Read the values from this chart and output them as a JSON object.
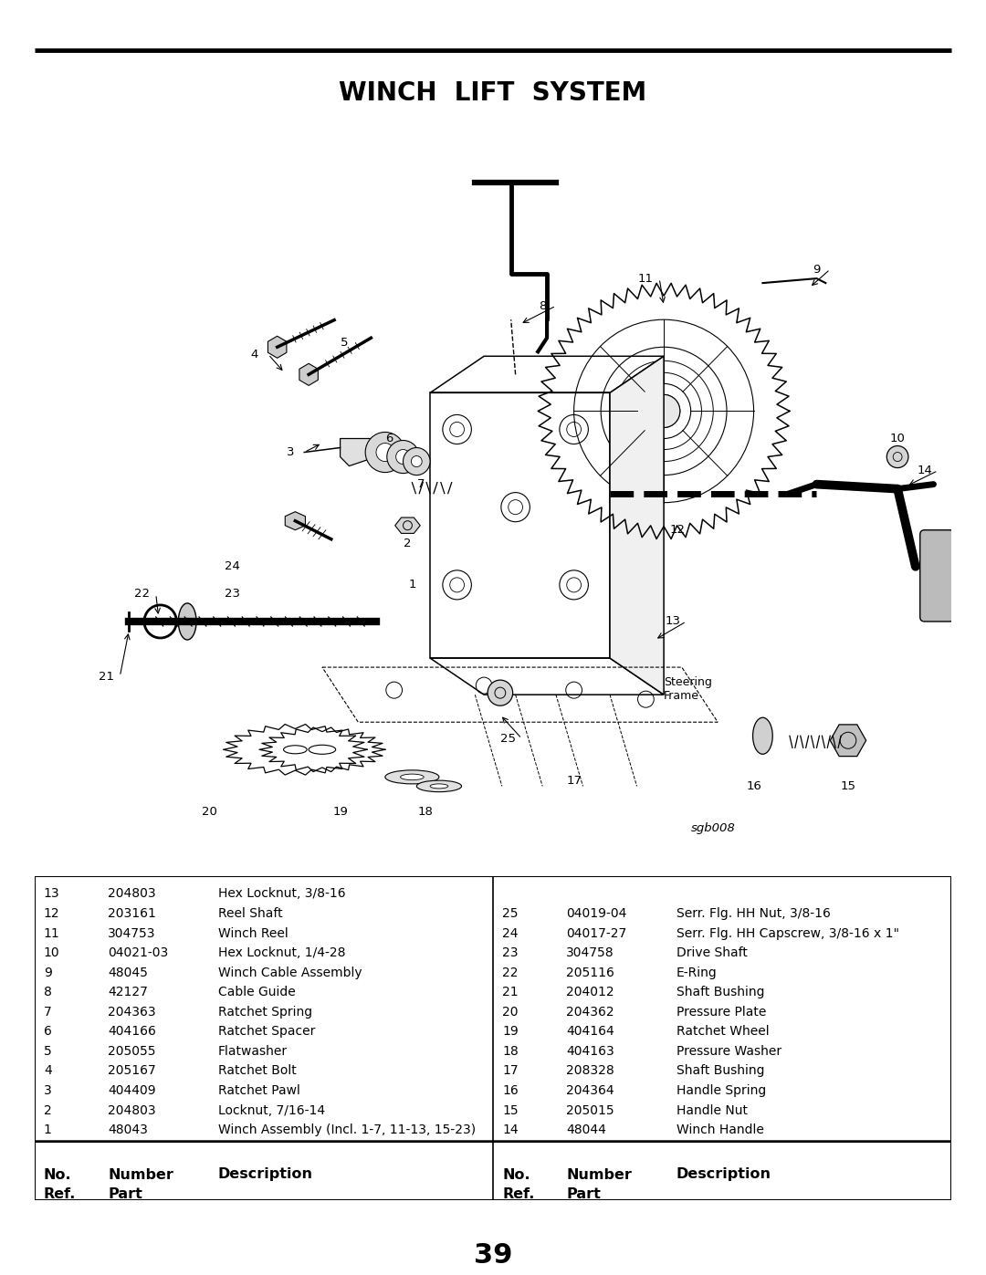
{
  "title": "WINCH  LIFT  SYSTEM",
  "page_number": "39",
  "diagram_label": "sgb008",
  "bg_color": "#ffffff",
  "text_color": "#000000",
  "left_parts": [
    [
      "1",
      "48043",
      "Winch Assembly (Incl. 1-7, 11-13, 15-23)"
    ],
    [
      "2",
      "204803",
      "Locknut, 7/16-14"
    ],
    [
      "3",
      "404409",
      "Ratchet Pawl"
    ],
    [
      "4",
      "205167",
      "Ratchet Bolt"
    ],
    [
      "5",
      "205055",
      "Flatwasher"
    ],
    [
      "6",
      "404166",
      "Ratchet Spacer"
    ],
    [
      "7",
      "204363",
      "Ratchet Spring"
    ],
    [
      "8",
      "42127",
      "Cable Guide"
    ],
    [
      "9",
      "48045",
      "Winch Cable Assembly"
    ],
    [
      "10",
      "04021-03",
      "Hex Locknut, 1/4-28"
    ],
    [
      "11",
      "304753",
      "Winch Reel"
    ],
    [
      "12",
      "203161",
      "Reel Shaft"
    ],
    [
      "13",
      "204803",
      "Hex Locknut, 3/8-16"
    ]
  ],
  "right_parts": [
    [
      "14",
      "48044",
      "Winch Handle"
    ],
    [
      "15",
      "205015",
      "Handle Nut"
    ],
    [
      "16",
      "204364",
      "Handle Spring"
    ],
    [
      "17",
      "208328",
      "Shaft Bushing"
    ],
    [
      "18",
      "404163",
      "Pressure Washer"
    ],
    [
      "19",
      "404164",
      "Ratchet Wheel"
    ],
    [
      "20",
      "204362",
      "Pressure Plate"
    ],
    [
      "21",
      "204012",
      "Shaft Bushing"
    ],
    [
      "22",
      "205116",
      "E-Ring"
    ],
    [
      "23",
      "304758",
      "Drive Shaft"
    ],
    [
      "24",
      "04017-27",
      "Serr. Flg. HH Capscrew, 3/8-16 x 1\""
    ],
    [
      "25",
      "04019-04",
      "Serr. Flg. HH Nut, 3/8-16"
    ]
  ]
}
